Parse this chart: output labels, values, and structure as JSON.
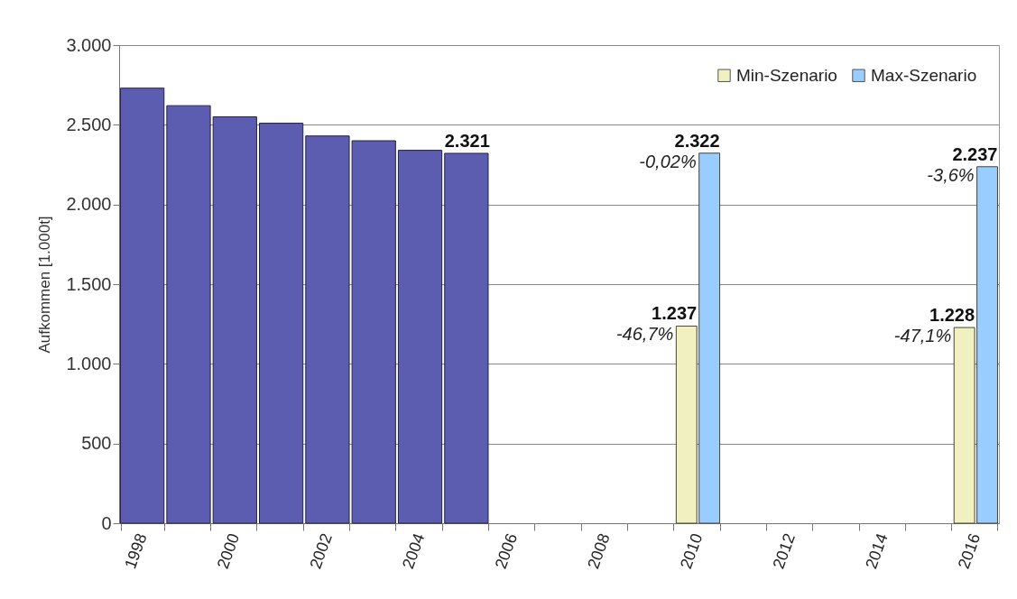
{
  "chart_data": {
    "type": "bar",
    "ylabel": "Aufkommen [1.000t]",
    "categories": [
      "1998",
      null,
      "2000",
      null,
      "2002",
      null,
      "2004",
      null,
      "2006",
      null,
      "2008",
      null,
      "2010",
      null,
      "2012",
      null,
      "2014",
      null,
      "2016"
    ],
    "series": [
      {
        "color": "#5c5cb0",
        "values": [
          2730,
          2620,
          2550,
          2510,
          2430,
          2400,
          2340,
          2321,
          null,
          null,
          null,
          null,
          null,
          null,
          null,
          null,
          null,
          null,
          null
        ],
        "value_labels": [
          null,
          null,
          null,
          null,
          null,
          null,
          null,
          "2.321",
          null,
          null,
          null,
          null,
          null,
          null,
          null,
          null,
          null,
          null,
          null
        ]
      },
      {
        "name": "Min-Szenario",
        "color": "#f0f0c0",
        "values": [
          null,
          null,
          null,
          null,
          null,
          null,
          null,
          null,
          null,
          null,
          null,
          null,
          1237,
          null,
          null,
          null,
          null,
          null,
          1228
        ],
        "value_labels": [
          null,
          null,
          null,
          null,
          null,
          null,
          null,
          null,
          null,
          null,
          null,
          null,
          "1.237",
          null,
          null,
          null,
          null,
          null,
          "1.228"
        ]
      },
      {
        "name": "Max-Szenario",
        "color": "#99ccff",
        "values": [
          null,
          null,
          null,
          null,
          null,
          null,
          null,
          null,
          null,
          null,
          null,
          null,
          2322,
          null,
          null,
          null,
          null,
          null,
          2237
        ],
        "value_labels": [
          null,
          null,
          null,
          null,
          null,
          null,
          null,
          null,
          null,
          null,
          null,
          null,
          "2.322",
          null,
          null,
          null,
          null,
          null,
          "2.237"
        ]
      }
    ],
    "ylim": [
      0,
      3000
    ],
    "yticks": [
      0,
      500,
      {
        "value": 1000,
        "label": "1.000"
      },
      {
        "value": 1500,
        "label": "1.500"
      },
      {
        "value": 2000,
        "label": "2.000"
      },
      {
        "value": 2500,
        "label": "2.500"
      },
      {
        "value": 3000,
        "label": "3.000"
      }
    ],
    "grid": "y",
    "legend": "top right",
    "annotations": [
      {
        "text": "-0,02%",
        "x": "2010",
        "y": 2322
      },
      {
        "text": "-3,6%",
        "x": "2016",
        "y": 2237
      },
      {
        "text": "-46,7%",
        "x": "2010",
        "y": 1237
      },
      {
        "text": "-47,1%",
        "x": "2016",
        "y": 1228
      }
    ]
  }
}
